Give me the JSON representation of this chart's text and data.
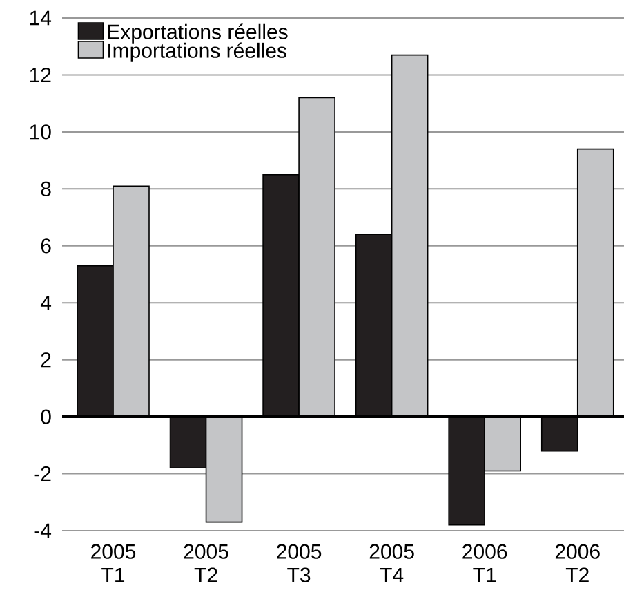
{
  "chart_data": {
    "type": "bar",
    "categories": [
      "2005 T1",
      "2005 T2",
      "2005 T3",
      "2005 T4",
      "2006 T1",
      "2006 T2"
    ],
    "series": [
      {
        "name": "Exportations réelles",
        "color": "#231f20",
        "values": [
          5.3,
          -1.8,
          8.5,
          6.4,
          -3.8,
          -1.2
        ]
      },
      {
        "name": "Importations réelles",
        "color": "#c4c5c7",
        "values": [
          8.1,
          -3.7,
          11.2,
          12.7,
          -1.9,
          9.4
        ]
      }
    ],
    "ylim": [
      -4,
      14
    ],
    "yticks": [
      -4,
      -2,
      0,
      2,
      4,
      6,
      8,
      10,
      12,
      14
    ],
    "grid": "y",
    "legend": "top left"
  }
}
